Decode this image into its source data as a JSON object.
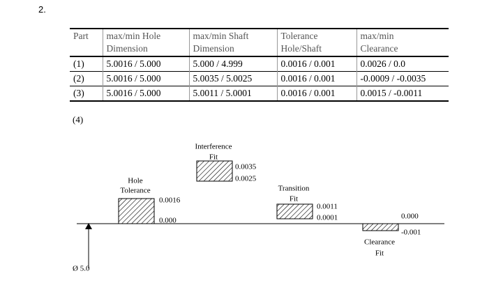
{
  "problem_number": "2.",
  "table": {
    "header": [
      [
        "Part"
      ],
      [
        "max/min Hole",
        "Dimension"
      ],
      [
        "max/min Shaft",
        "Dimension"
      ],
      [
        "Tolerance",
        "Hole/Shaft"
      ],
      [
        "max/min",
        "Clearance"
      ]
    ],
    "rows": [
      [
        "(1)",
        "5.0016 / 5.000",
        "5.000 / 4.999",
        "0.0016 / 0.001",
        "0.0026 / 0.0"
      ],
      [
        "(2)",
        "5.0016 / 5.000",
        "5.0035 / 5.0025",
        "0.0016 / 0.001",
        "-0.0009 / -0.0035"
      ],
      [
        "(3)",
        "5.0016 / 5.000",
        "5.0011 / 5.0001",
        "0.0016 / 0.001",
        "0.0015 / -0.0011"
      ]
    ]
  },
  "part_label": "(4)",
  "diagram": {
    "hole": {
      "label": [
        "Hole",
        "Tolerance"
      ],
      "upper": "0.0016",
      "lower": "0.000"
    },
    "interference": {
      "label": [
        "Interference",
        "Fit"
      ],
      "upper": "0.0035",
      "lower": "0.0025"
    },
    "transition": {
      "label": [
        "Transition",
        "Fit"
      ],
      "upper": "0.0011",
      "lower": "0.0001"
    },
    "clearance": {
      "label": [
        "Clearance",
        "Fit"
      ],
      "upper": "0.000",
      "lower": "-0.001"
    },
    "basic_size": "Ø 5.0"
  }
}
